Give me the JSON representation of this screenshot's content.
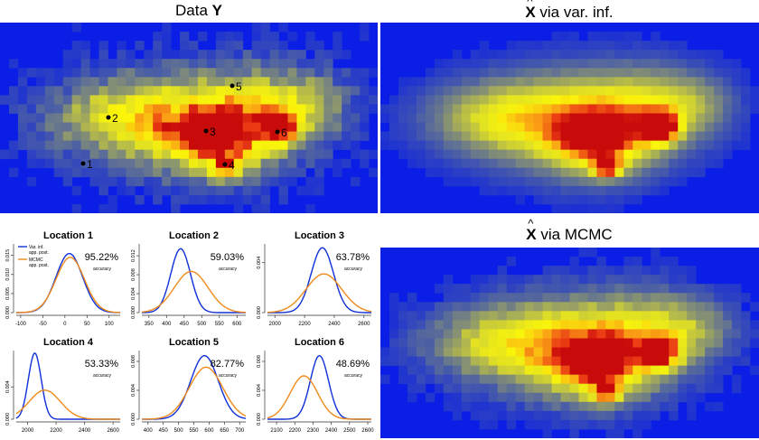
{
  "panels": {
    "data_y": {
      "title_prefix": "Data ",
      "title_symbol": "Y"
    },
    "var_inf": {
      "title_symbol": "X",
      "title_suffix": " via var. inf."
    },
    "mcmc": {
      "title_symbol": "X",
      "title_suffix": " via MCMC"
    }
  },
  "locations": [
    {
      "label": "1"
    },
    {
      "label": "2"
    },
    {
      "label": "3"
    },
    {
      "label": "4"
    },
    {
      "label": "5"
    },
    {
      "label": "6"
    }
  ],
  "legend": {
    "var_inf": "Var. inf. app. post.",
    "mcmc": "MCMC app. post."
  },
  "colors": {
    "var_inf": "#1030d8",
    "mcmc": "#f08a1a",
    "heat_bg": "#0a1ee6"
  },
  "chart_data": [
    {
      "type": "line",
      "title": "Location 1",
      "accuracy": "95.22%",
      "accuracy_label": "accuracy",
      "xticks": [
        "-100",
        "-50",
        "0",
        "50",
        "100"
      ],
      "xlim": [
        -110,
        125
      ],
      "yticks": [
        "0.000",
        "0.005",
        "0.010",
        "0.015"
      ],
      "ylim": [
        0,
        0.018
      ],
      "series": [
        {
          "name": "Var. inf. app. post.",
          "mean": 10,
          "sd": 30,
          "peak": 0.0155
        },
        {
          "name": "MCMC app. post.",
          "mean": 12,
          "sd": 32,
          "peak": 0.0145
        }
      ]
    },
    {
      "type": "line",
      "title": "Location 2",
      "accuracy": "59.03%",
      "accuracy_label": "accuracy",
      "xticks": [
        "350",
        "400",
        "450",
        "500",
        "550",
        "600"
      ],
      "xlim": [
        330,
        625
      ],
      "yticks": [
        "0.000",
        "0.004",
        "0.008",
        "0.012"
      ],
      "ylim": [
        0,
        0.0145
      ],
      "series": [
        {
          "name": "Var. inf. app. post.",
          "mean": 440,
          "sd": 28,
          "peak": 0.0135
        },
        {
          "name": "MCMC app. post.",
          "mean": 470,
          "sd": 48,
          "peak": 0.0087
        }
      ]
    },
    {
      "type": "line",
      "title": "Location 3",
      "accuracy": "63.78%",
      "accuracy_label": "accuracy",
      "xticks": [
        "2000",
        "2200",
        "2400",
        "2600"
      ],
      "xlim": [
        1950,
        2650
      ],
      "yticks": [
        "0.000",
        "0.004"
      ],
      "ylim": [
        0,
        0.0055
      ],
      "series": [
        {
          "name": "Var. inf. app. post.",
          "mean": 2320,
          "sd": 75,
          "peak": 0.0052
        },
        {
          "name": "MCMC app. post.",
          "mean": 2330,
          "sd": 120,
          "peak": 0.0031
        }
      ]
    },
    {
      "type": "line",
      "title": "Location 4",
      "accuracy": "53.33%",
      "accuracy_label": "accuracy",
      "xticks": [
        "2000",
        "2200",
        "2400",
        "2600"
      ],
      "xlim": [
        1920,
        2650
      ],
      "yticks": [
        "0.000",
        "0.004"
      ],
      "ylim": [
        0,
        0.0085
      ],
      "series": [
        {
          "name": "Var. inf. app. post.",
          "mean": 2050,
          "sd": 45,
          "peak": 0.0082
        },
        {
          "name": "MCMC app. post.",
          "mean": 2120,
          "sd": 110,
          "peak": 0.0036
        }
      ]
    },
    {
      "type": "line",
      "title": "Location 5",
      "accuracy": "82.77%",
      "accuracy_label": "accuracy",
      "xticks": [
        "400",
        "450",
        "500",
        "550",
        "600",
        "650",
        "700"
      ],
      "xlim": [
        380,
        720
      ],
      "yticks": [
        "0.000",
        "0.004",
        "0.008"
      ],
      "ylim": [
        0,
        0.0095
      ],
      "series": [
        {
          "name": "Var. inf. app. post.",
          "mean": 585,
          "sd": 45,
          "peak": 0.0088
        },
        {
          "name": "MCMC app. post.",
          "mean": 590,
          "sd": 55,
          "peak": 0.0072
        }
      ]
    },
    {
      "type": "line",
      "title": "Location 6",
      "accuracy": "48.69%",
      "accuracy_label": "accuracy",
      "xticks": [
        "2100",
        "2200",
        "2300",
        "2400",
        "2500",
        "2600"
      ],
      "xlim": [
        2050,
        2620
      ],
      "yticks": [
        "0.000",
        "0.004",
        "0.008"
      ],
      "ylim": [
        0,
        0.0095
      ],
      "series": [
        {
          "name": "Var. inf. app. post.",
          "mean": 2335,
          "sd": 50,
          "peak": 0.0088
        },
        {
          "name": "MCMC app. post.",
          "mean": 2250,
          "sd": 75,
          "peak": 0.006
        }
      ]
    }
  ]
}
